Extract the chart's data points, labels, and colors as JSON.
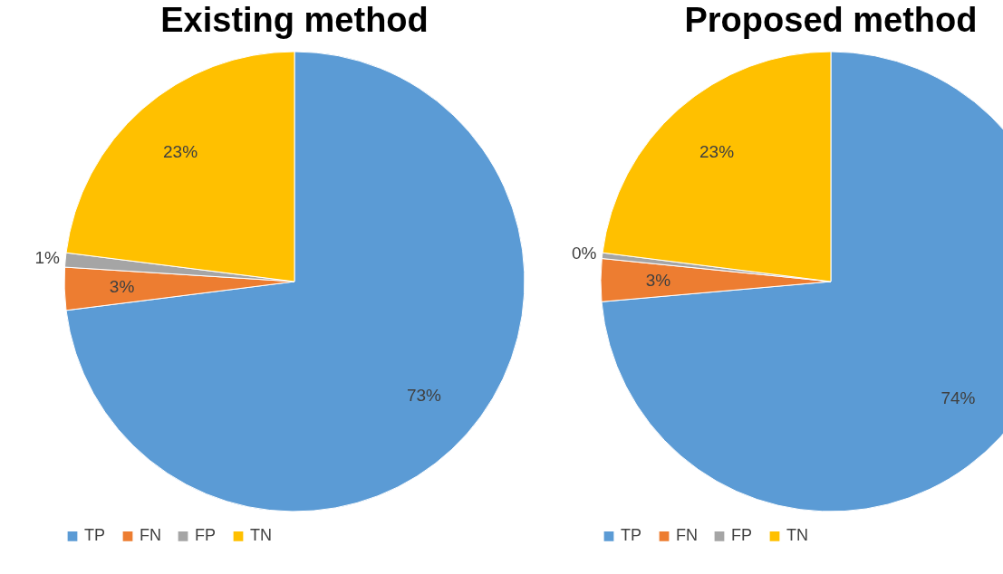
{
  "chart_data": [
    {
      "type": "pie",
      "title": "Existing method",
      "categories": [
        "TP",
        "FN",
        "FP",
        "TN"
      ],
      "values": [
        73,
        3,
        1,
        23
      ],
      "value_labels": [
        "73%",
        "3%",
        "1%",
        "23%"
      ],
      "colors": [
        "#5b9bd5",
        "#ed7d31",
        "#a5a5a5",
        "#ffc000"
      ],
      "legend": "bottom"
    },
    {
      "type": "pie",
      "title": "Proposed method",
      "categories": [
        "TP",
        "FN",
        "FP",
        "TN"
      ],
      "values": [
        73.6,
        3,
        0.4,
        23
      ],
      "value_labels": [
        "74%",
        "3%",
        "0%",
        "23%"
      ],
      "colors": [
        "#5b9bd5",
        "#ed7d31",
        "#a5a5a5",
        "#ffc000"
      ],
      "legend": "bottom"
    }
  ]
}
